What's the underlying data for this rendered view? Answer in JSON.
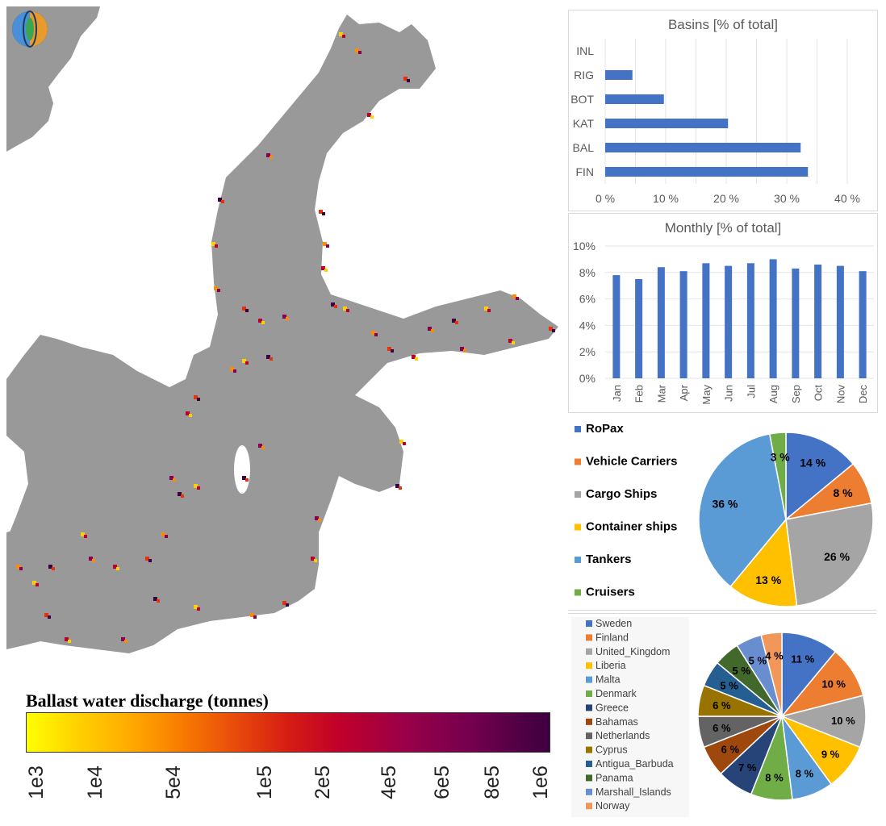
{
  "map": {
    "colorbar_title": "Ballast water discharge (tonnes)",
    "colorbar_ticks": [
      "1e3",
      "1e4",
      "5e4",
      "1e5",
      "2e5",
      "4e5",
      "6e5",
      "8e5",
      "1e6"
    ],
    "colors": {
      "sea": "#ffffff",
      "land": "#999999",
      "low": "#ffff00",
      "mid": "#e8300c",
      "high": "#3d0040"
    }
  },
  "chart_data": [
    {
      "type": "bar",
      "orientation": "horizontal",
      "title": "Basins [% of total]",
      "categories": [
        "INL",
        "RIG",
        "BOT",
        "KAT",
        "BAL",
        "FIN"
      ],
      "values": [
        0,
        4.5,
        9.7,
        20.3,
        32.3,
        33.5
      ],
      "xlim": [
        0,
        40
      ],
      "xticks": [
        "0 %",
        "10 %",
        "20 %",
        "30 %",
        "40 %"
      ],
      "grid": true,
      "color": "#4472c4"
    },
    {
      "type": "bar",
      "title": "Monthly [% of total]",
      "categories": [
        "Jan",
        "Feb",
        "Mar",
        "Apr",
        "May",
        "Jun",
        "Jul",
        "Aug",
        "Sep",
        "Oct",
        "Nov",
        "Dec"
      ],
      "values": [
        7.8,
        7.5,
        8.4,
        8.1,
        8.7,
        8.5,
        8.7,
        9.0,
        8.3,
        8.6,
        8.5,
        8.1
      ],
      "ylim": [
        0,
        10
      ],
      "yticks": [
        "0%",
        "2%",
        "4%",
        "6%",
        "8%",
        "10%"
      ],
      "grid": true,
      "color": "#4472c4"
    },
    {
      "type": "pie",
      "legend_position": "left",
      "slices": [
        {
          "name": "RoPax",
          "value": 14,
          "label": "14 %",
          "color": "#4472c4"
        },
        {
          "name": "Vehicle Carriers",
          "value": 8,
          "label": "8 %",
          "color": "#ed7d31"
        },
        {
          "name": "Cargo Ships",
          "value": 26,
          "label": "26 %",
          "color": "#a5a5a5"
        },
        {
          "name": "Container ships",
          "value": 13,
          "label": "13 %",
          "color": "#ffc000"
        },
        {
          "name": "Tankers",
          "value": 36,
          "label": "36 %",
          "color": "#5b9bd5"
        },
        {
          "name": "Cruisers",
          "value": 3,
          "label": "3 %",
          "color": "#70ad47"
        }
      ]
    },
    {
      "type": "pie",
      "legend_position": "left",
      "slices": [
        {
          "name": "Sweden",
          "value": 11,
          "label": "11 %",
          "color": "#4472c4"
        },
        {
          "name": "Finland",
          "value": 10,
          "label": "10 %",
          "color": "#ed7d31"
        },
        {
          "name": "United_Kingdom",
          "value": 10,
          "label": "10 %",
          "color": "#a5a5a5"
        },
        {
          "name": "Liberia",
          "value": 9,
          "label": "9 %",
          "color": "#ffc000"
        },
        {
          "name": "Malta",
          "value": 8,
          "label": "8 %",
          "color": "#5b9bd5"
        },
        {
          "name": "Denmark",
          "value": 8,
          "label": "8 %",
          "color": "#70ad47"
        },
        {
          "name": "Greece",
          "value": 7,
          "label": "7 %",
          "color": "#264478"
        },
        {
          "name": "Bahamas",
          "value": 6,
          "label": "6 %",
          "color": "#9e480e"
        },
        {
          "name": "Netherlands",
          "value": 6,
          "label": "6 %",
          "color": "#636363"
        },
        {
          "name": "Cyprus",
          "value": 6,
          "label": "6 %",
          "color": "#997300"
        },
        {
          "name": "Antigua_Barbuda",
          "value": 5,
          "label": "5 %",
          "color": "#255e91"
        },
        {
          "name": "Panama",
          "value": 5,
          "label": "5 %",
          "color": "#43682b"
        },
        {
          "name": "Marshall_Islands",
          "value": 5,
          "label": "5 %",
          "color": "#698ed0"
        },
        {
          "name": "Norway",
          "value": 4,
          "label": "4 %",
          "color": "#f1975a"
        }
      ]
    }
  ]
}
